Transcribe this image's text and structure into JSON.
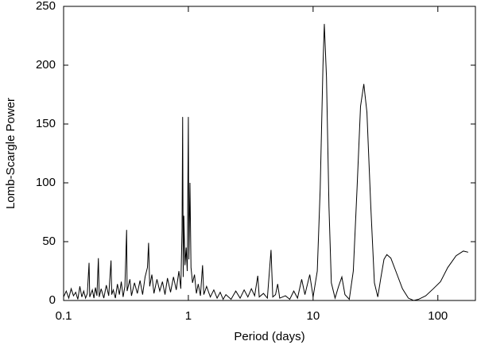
{
  "chart_data": {
    "type": "line",
    "x_label": "Period (days)",
    "y_label": "Lomb-Scargle Power",
    "xscale": "log",
    "xlim": [
      0.1,
      200
    ],
    "xticks": [
      0.1,
      1,
      10,
      100
    ],
    "ylim": [
      0,
      250
    ],
    "yticks": [
      0,
      50,
      100,
      150,
      200,
      250
    ],
    "color": "#000000",
    "x": [
      0.1,
      0.105,
      0.11,
      0.115,
      0.12,
      0.125,
      0.13,
      0.135,
      0.14,
      0.145,
      0.15,
      0.155,
      0.16,
      0.162,
      0.17,
      0.175,
      0.18,
      0.185,
      0.19,
      0.193,
      0.2,
      0.21,
      0.22,
      0.23,
      0.24,
      0.243,
      0.25,
      0.26,
      0.27,
      0.28,
      0.29,
      0.3,
      0.31,
      0.32,
      0.323,
      0.34,
      0.35,
      0.37,
      0.39,
      0.41,
      0.43,
      0.45,
      0.47,
      0.48,
      0.49,
      0.51,
      0.53,
      0.56,
      0.59,
      0.62,
      0.65,
      0.68,
      0.72,
      0.76,
      0.8,
      0.84,
      0.87,
      0.89,
      0.9,
      0.91,
      0.92,
      0.94,
      0.96,
      0.98,
      1.0,
      1.01,
      1.03,
      1.05,
      1.08,
      1.12,
      1.16,
      1.2,
      1.25,
      1.3,
      1.33,
      1.4,
      1.5,
      1.6,
      1.7,
      1.8,
      1.9,
      2.0,
      2.2,
      2.4,
      2.6,
      2.8,
      3.0,
      3.2,
      3.4,
      3.6,
      3.7,
      4.0,
      4.3,
      4.6,
      4.75,
      5.0,
      5.2,
      5.4,
      6.0,
      6.5,
      7.0,
      7.5,
      8.1,
      8.6,
      9.4,
      10.0,
      10.8,
      11.4,
      12.0,
      12.3,
      12.8,
      13.4,
      14.0,
      15.0,
      16.0,
      17.0,
      18.0,
      19.5,
      21,
      22.5,
      24,
      25.5,
      27,
      29,
      31,
      33,
      35,
      37,
      39,
      42,
      46,
      52,
      58,
      64,
      70,
      80,
      92,
      105,
      120,
      140,
      160,
      175
    ],
    "values": [
      3,
      8,
      2,
      10,
      4,
      7,
      1,
      12,
      3,
      8,
      2,
      6,
      32,
      3,
      9,
      2,
      11,
      4,
      36,
      3,
      10,
      2,
      13,
      4,
      34,
      5,
      9,
      2,
      14,
      5,
      16,
      3,
      12,
      60,
      8,
      18,
      4,
      15,
      6,
      17,
      5,
      20,
      28,
      49,
      12,
      22,
      6,
      18,
      8,
      16,
      5,
      19,
      7,
      20,
      9,
      25,
      10,
      60,
      156,
      20,
      72,
      30,
      45,
      25,
      156,
      35,
      100,
      28,
      15,
      22,
      6,
      14,
      4,
      30,
      5,
      12,
      3,
      9,
      2,
      7,
      1,
      5,
      1,
      8,
      2,
      9,
      3,
      10,
      4,
      21,
      3,
      6,
      2,
      43,
      3,
      5,
      14,
      2,
      4,
      1,
      8,
      2,
      18,
      5,
      22,
      3,
      25,
      95,
      200,
      235,
      190,
      80,
      15,
      2,
      12,
      20,
      5,
      1,
      25,
      95,
      165,
      184,
      160,
      80,
      15,
      3,
      20,
      35,
      39,
      36,
      25,
      10,
      2,
      0,
      1,
      4,
      10,
      16,
      28,
      38,
      42,
      41
    ]
  }
}
